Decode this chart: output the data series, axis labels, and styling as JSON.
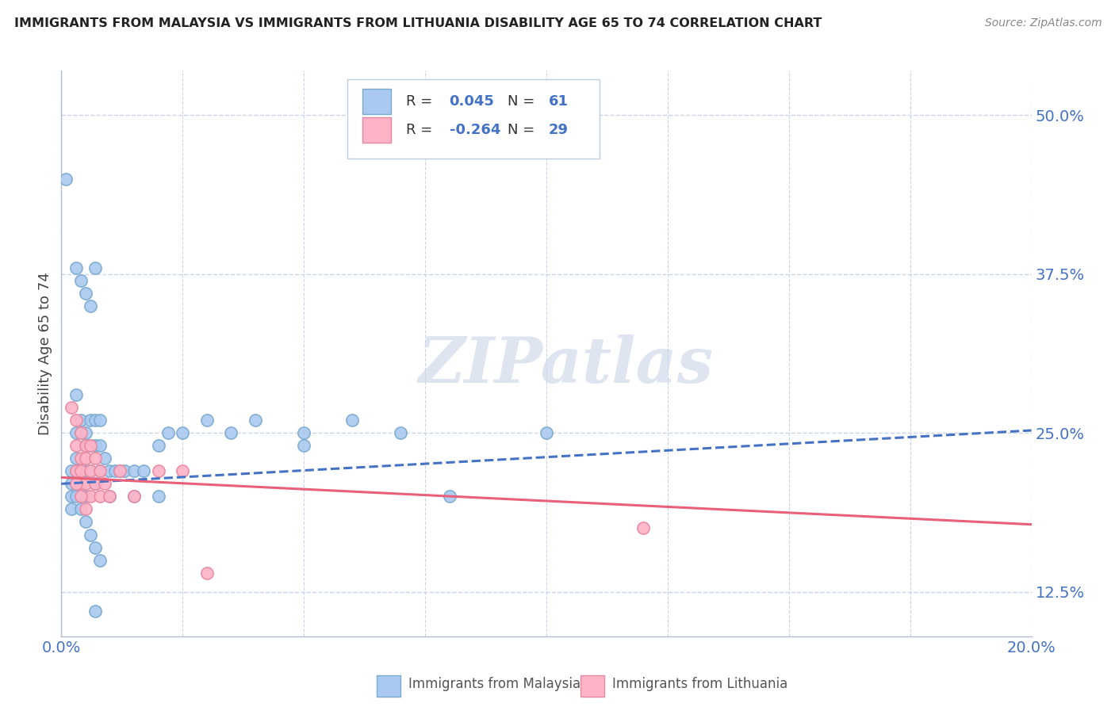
{
  "title": "IMMIGRANTS FROM MALAYSIA VS IMMIGRANTS FROM LITHUANIA DISABILITY AGE 65 TO 74 CORRELATION CHART",
  "source": "Source: ZipAtlas.com",
  "ylabel": "Disability Age 65 to 74",
  "xlim": [
    0.0,
    0.2
  ],
  "ylim": [
    0.09,
    0.535
  ],
  "xticks": [
    0.0,
    0.025,
    0.05,
    0.075,
    0.1,
    0.125,
    0.15,
    0.175,
    0.2
  ],
  "yticks": [
    0.125,
    0.25,
    0.375,
    0.5
  ],
  "ytick_labels": [
    "12.5%",
    "25.0%",
    "37.5%",
    "50.0%"
  ],
  "malaysia_color": "#aac9f0",
  "malaysia_edge": "#7aaad0",
  "lithuania_color": "#ffb3c6",
  "lithuania_edge": "#e888a0",
  "malaysia_trend_color": "#4472c4",
  "malaysia_trend_style": "--",
  "lithuania_trend_color": "#e8607a",
  "lithuania_trend_style": "-",
  "watermark": "ZIPatlas",
  "background_color": "#ffffff",
  "grid_color": "#c8d4e8",
  "malaysia_scatter_x": [
    0.001,
    0.002,
    0.002,
    0.002,
    0.003,
    0.003,
    0.003,
    0.003,
    0.003,
    0.003,
    0.004,
    0.004,
    0.004,
    0.004,
    0.004,
    0.005,
    0.005,
    0.005,
    0.005,
    0.005,
    0.006,
    0.006,
    0.006,
    0.006,
    0.007,
    0.007,
    0.007,
    0.007,
    0.008,
    0.008,
    0.008,
    0.009,
    0.01,
    0.011,
    0.012,
    0.013,
    0.015,
    0.017,
    0.02,
    0.022,
    0.025,
    0.03,
    0.035,
    0.04,
    0.05,
    0.06,
    0.07,
    0.08,
    0.1,
    0.002,
    0.003,
    0.004,
    0.005,
    0.006,
    0.007,
    0.008,
    0.01,
    0.015,
    0.02,
    0.05,
    0.007
  ],
  "malaysia_scatter_y": [
    0.45,
    0.22,
    0.21,
    0.2,
    0.38,
    0.28,
    0.25,
    0.23,
    0.22,
    0.21,
    0.37,
    0.26,
    0.25,
    0.22,
    0.21,
    0.36,
    0.25,
    0.24,
    0.22,
    0.2,
    0.35,
    0.26,
    0.24,
    0.22,
    0.38,
    0.26,
    0.24,
    0.21,
    0.26,
    0.24,
    0.22,
    0.23,
    0.22,
    0.22,
    0.22,
    0.22,
    0.22,
    0.22,
    0.24,
    0.25,
    0.25,
    0.26,
    0.25,
    0.26,
    0.25,
    0.26,
    0.25,
    0.2,
    0.25,
    0.19,
    0.2,
    0.19,
    0.18,
    0.17,
    0.16,
    0.15,
    0.2,
    0.2,
    0.2,
    0.24,
    0.11
  ],
  "lithuania_scatter_x": [
    0.002,
    0.003,
    0.003,
    0.003,
    0.004,
    0.004,
    0.004,
    0.004,
    0.005,
    0.005,
    0.005,
    0.006,
    0.006,
    0.006,
    0.007,
    0.007,
    0.008,
    0.008,
    0.009,
    0.01,
    0.012,
    0.015,
    0.02,
    0.025,
    0.03,
    0.12,
    0.003,
    0.004,
    0.005
  ],
  "lithuania_scatter_y": [
    0.27,
    0.26,
    0.24,
    0.22,
    0.25,
    0.23,
    0.22,
    0.21,
    0.24,
    0.23,
    0.21,
    0.24,
    0.22,
    0.2,
    0.23,
    0.21,
    0.22,
    0.2,
    0.21,
    0.2,
    0.22,
    0.2,
    0.22,
    0.22,
    0.14,
    0.175,
    0.21,
    0.2,
    0.19
  ],
  "malaysia_trend_y0": 0.21,
  "malaysia_trend_y1": 0.252,
  "lithuania_trend_y0": 0.215,
  "lithuania_trend_y1": 0.178
}
